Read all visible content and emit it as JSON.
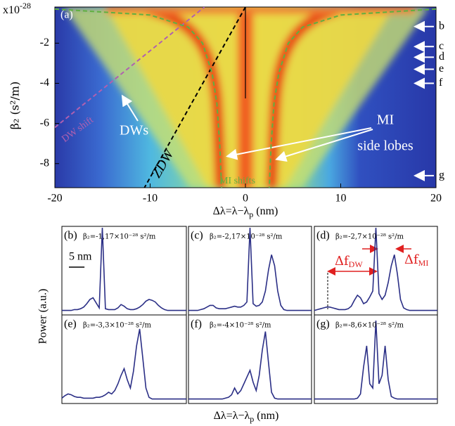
{
  "chart_data": [
    {
      "type": "line",
      "panel_label": "(a)",
      "xlim": [
        -20,
        20
      ],
      "ylim": [
        -9.2,
        -0.2
      ],
      "xticks": [
        -20,
        -10,
        0,
        10,
        20
      ],
      "yticks": [
        -2,
        -4,
        -6,
        -8
      ],
      "y_multiplier": "x10",
      "y_exponent": "-28",
      "y_label": "β₂ (s²/m)",
      "x_label": "Δλ=λ−λ",
      "x_label_sub": "p",
      "x_label_unit": " (nm)",
      "series": [
        {
          "color": "#000000",
          "dash": true,
          "x": [
            0,
            -10.6
          ],
          "values": [
            -0.2,
            -9.2
          ]
        },
        {
          "color": "#b060b0",
          "dash": true,
          "x": [
            -20,
            -4.3
          ],
          "values": [
            -6.2,
            -0.2
          ]
        },
        {
          "color": "#60b040",
          "dash": true,
          "x": [
            -20,
            -10,
            -6,
            -4.5,
            -3.5,
            -3,
            -2.7,
            -2.5
          ],
          "values": [
            -0.3,
            -0.6,
            -1.2,
            -2,
            -3.5,
            -5,
            -7,
            -9.2
          ]
        },
        {
          "color": "#60b040",
          "dash": true,
          "x": [
            20,
            10,
            6,
            4.5,
            3.5,
            3,
            2.7,
            2.5
          ],
          "values": [
            -0.3,
            -0.6,
            -1.2,
            -2,
            -3.5,
            -5,
            -7,
            -9.2
          ]
        }
      ],
      "annotations": [
        "DWs",
        "MI",
        "side lobes",
        "ZDW",
        "DW shift",
        "MI shifts"
      ],
      "markers": {
        "labels": [
          "b",
          "c",
          "d",
          "e",
          "f",
          "g"
        ],
        "values": [
          -1.17,
          -2.17,
          -2.7,
          -3.3,
          -4,
          -8.6
        ]
      }
    },
    {
      "type": "line",
      "panel_label": "(b)",
      "label": "β₂=-1,17×10⁻²⁸ s²/m",
      "color": "#2b2f86",
      "xlim": [
        -13,
        27
      ],
      "ylim": [
        0,
        1
      ],
      "x": [
        -13,
        -12,
        -11,
        -10,
        -9,
        -8,
        -7,
        -6,
        -5,
        -4,
        -3,
        -2,
        -1,
        0,
        1,
        2,
        3,
        4,
        5,
        6,
        7,
        8,
        9,
        10,
        11,
        12,
        13,
        14,
        15,
        16,
        17,
        18,
        19,
        20,
        21,
        22,
        23,
        24,
        25,
        26,
        27
      ],
      "values": [
        0.02,
        0.02,
        0.02,
        0.02,
        0.03,
        0.03,
        0.04,
        0.06,
        0.1,
        0.15,
        0.17,
        0.11,
        0.05,
        1.0,
        0.04,
        0.03,
        0.03,
        0.03,
        0.05,
        0.09,
        0.07,
        0.04,
        0.03,
        0.03,
        0.04,
        0.06,
        0.09,
        0.13,
        0.15,
        0.14,
        0.12,
        0.08,
        0.05,
        0.03,
        0.02,
        0.02,
        0.02,
        0.02,
        0.02,
        0.02,
        0.02
      ],
      "scale_bar": {
        "label": "5 nm",
        "value": 5
      }
    },
    {
      "type": "line",
      "panel_label": "(c)",
      "label": "β₂=-2,17×10⁻²⁸ s²/m",
      "color": "#2b2f86",
      "xlim": [
        -20,
        20
      ],
      "ylim": [
        0,
        1
      ],
      "x": [
        -20,
        -19,
        -18,
        -17,
        -16,
        -15,
        -14,
        -13,
        -12,
        -11,
        -10,
        -9,
        -8,
        -7,
        -6,
        -5,
        -4,
        -3,
        -2,
        -1,
        0,
        1,
        2,
        3,
        4,
        5,
        6,
        7,
        8,
        9,
        10,
        11,
        12,
        13,
        14,
        15,
        16,
        17,
        18,
        19,
        20
      ],
      "values": [
        0.02,
        0.02,
        0.02,
        0.02,
        0.03,
        0.04,
        0.06,
        0.08,
        0.08,
        0.05,
        0.04,
        0.04,
        0.04,
        0.05,
        0.06,
        0.07,
        0.06,
        0.06,
        0.08,
        0.12,
        1.0,
        0.1,
        0.07,
        0.08,
        0.12,
        0.25,
        0.5,
        0.68,
        0.55,
        0.25,
        0.08,
        0.03,
        0.02,
        0.02,
        0.02,
        0.02,
        0.02,
        0.02,
        0.02,
        0.02,
        0.02
      ]
    },
    {
      "type": "line",
      "panel_label": "(d)",
      "label": "β₂=-2,7×10⁻²⁸ s²/m",
      "color": "#2b2f86",
      "xlim": [
        -20,
        20
      ],
      "ylim": [
        0,
        1
      ],
      "x": [
        -20,
        -19,
        -18,
        -17,
        -16,
        -15,
        -14,
        -13,
        -12,
        -11,
        -10,
        -9,
        -8,
        -7,
        -6,
        -5,
        -4,
        -3,
        -2,
        -1,
        0,
        1,
        2,
        3,
        4,
        5,
        6,
        7,
        8,
        9,
        10,
        11,
        12,
        13,
        14,
        15,
        16,
        17,
        18,
        19,
        20
      ],
      "values": [
        0.02,
        0.03,
        0.04,
        0.05,
        0.06,
        0.06,
        0.05,
        0.04,
        0.03,
        0.03,
        0.03,
        0.04,
        0.07,
        0.14,
        0.2,
        0.17,
        0.1,
        0.12,
        0.18,
        0.25,
        1.0,
        0.22,
        0.15,
        0.2,
        0.35,
        0.55,
        0.68,
        0.45,
        0.15,
        0.05,
        0.03,
        0.02,
        0.02,
        0.02,
        0.02,
        0.02,
        0.02,
        0.02,
        0.02,
        0.02,
        0.02
      ],
      "annotations": [
        {
          "text": "Δf",
          "sub": "DW"
        },
        {
          "text": "Δf",
          "sub": "MI"
        }
      ]
    },
    {
      "type": "line",
      "panel_label": "(e)",
      "label": "β₂=-3,3×10⁻²⁸ s²/m",
      "color": "#2b2f86",
      "xlim": [
        -20,
        20
      ],
      "ylim": [
        0,
        1
      ],
      "x": [
        -20,
        -19,
        -18,
        -17,
        -16,
        -15,
        -14,
        -13,
        -12,
        -11,
        -10,
        -9,
        -8,
        -7,
        -6,
        -5,
        -4,
        -3,
        -2,
        -1,
        0,
        1,
        2,
        3,
        4,
        5,
        6,
        7,
        8,
        9,
        10,
        11,
        12,
        13,
        14,
        15,
        16,
        17,
        18,
        19,
        20
      ],
      "values": [
        0.03,
        0.06,
        0.08,
        0.07,
        0.05,
        0.04,
        0.04,
        0.03,
        0.03,
        0.03,
        0.03,
        0.04,
        0.04,
        0.05,
        0.07,
        0.1,
        0.08,
        0.12,
        0.2,
        0.3,
        0.38,
        0.25,
        0.15,
        0.35,
        0.65,
        0.85,
        0.5,
        0.15,
        0.04,
        0.02,
        0.02,
        0.02,
        0.02,
        0.02,
        0.02,
        0.02,
        0.02,
        0.02,
        0.02,
        0.02,
        0.02
      ]
    },
    {
      "type": "line",
      "panel_label": "(f)",
      "label": "β₂=-4×10⁻²⁸ s²/m",
      "color": "#2b2f86",
      "xlim": [
        -20,
        20
      ],
      "ylim": [
        0,
        1
      ],
      "x": [
        -20,
        -19,
        -18,
        -17,
        -16,
        -15,
        -14,
        -13,
        -12,
        -11,
        -10,
        -9,
        -8,
        -7,
        -6,
        -5,
        -4,
        -3,
        -2,
        -1,
        0,
        1,
        2,
        3,
        4,
        5,
        6,
        7,
        8,
        9,
        10,
        11,
        12,
        13,
        14,
        15,
        16,
        17,
        18,
        19,
        20
      ],
      "values": [
        0.02,
        0.02,
        0.02,
        0.02,
        0.02,
        0.02,
        0.02,
        0.02,
        0.02,
        0.02,
        0.02,
        0.02,
        0.03,
        0.04,
        0.07,
        0.15,
        0.08,
        0.12,
        0.2,
        0.28,
        0.36,
        0.22,
        0.12,
        0.3,
        0.6,
        0.82,
        0.45,
        0.1,
        0.03,
        0.02,
        0.02,
        0.02,
        0.02,
        0.02,
        0.02,
        0.02,
        0.02,
        0.02,
        0.02,
        0.02,
        0.02
      ]
    },
    {
      "type": "line",
      "panel_label": "(g)",
      "label": "β₂=-8,6×10⁻²⁸ s²/m",
      "color": "#2b2f86",
      "xlim": [
        -20,
        20
      ],
      "ylim": [
        0,
        1
      ],
      "x": [
        -20,
        -19,
        -18,
        -17,
        -16,
        -15,
        -14,
        -13,
        -12,
        -11,
        -10,
        -9,
        -8,
        -7,
        -6,
        -5,
        -4,
        -3,
        -2,
        -1,
        0,
        1,
        2,
        3,
        4,
        5,
        6,
        7,
        8,
        9,
        10,
        11,
        12,
        13,
        14,
        15,
        16,
        17,
        18,
        19,
        20
      ],
      "values": [
        0.02,
        0.02,
        0.02,
        0.02,
        0.02,
        0.02,
        0.02,
        0.02,
        0.02,
        0.02,
        0.02,
        0.02,
        0.02,
        0.02,
        0.03,
        0.08,
        0.4,
        0.65,
        0.2,
        0.15,
        0.95,
        0.2,
        0.3,
        0.65,
        0.25,
        0.05,
        0.03,
        0.02,
        0.02,
        0.02,
        0.02,
        0.02,
        0.02,
        0.02,
        0.02,
        0.02,
        0.02,
        0.02,
        0.02,
        0.02,
        0.02
      ]
    }
  ],
  "spectra_labels": {
    "y_label": "Power (a.u.)",
    "x_label": "Δλ=λ−λ",
    "x_label_sub": "p",
    "x_label_unit": " (nm)"
  }
}
